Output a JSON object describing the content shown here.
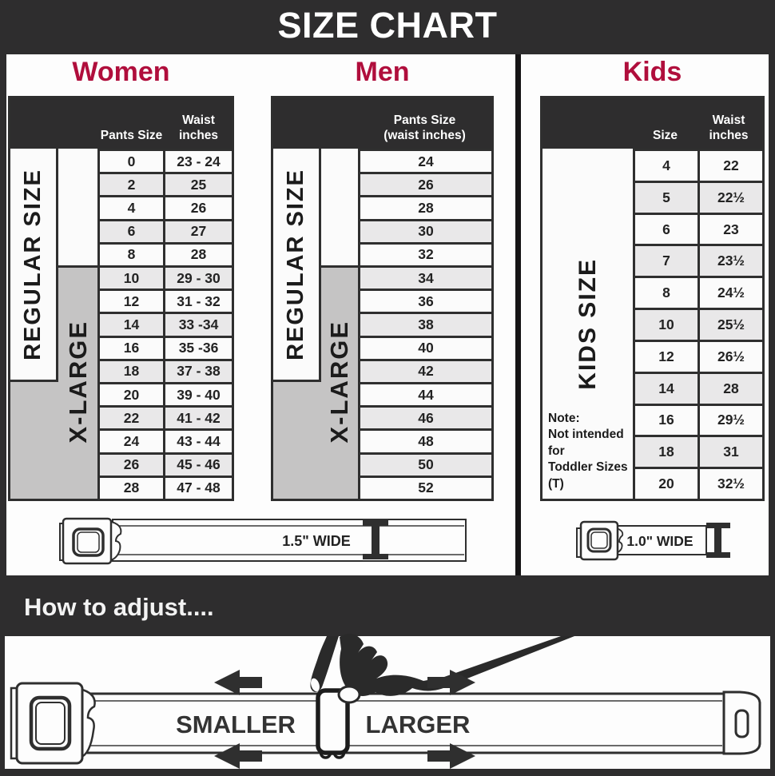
{
  "page": {
    "title": "SIZE CHART",
    "adjust_heading": "How to adjust...."
  },
  "colors": {
    "accent": "#b00e3c",
    "dark": "#2e2d2e",
    "gray": "#c5c4c4"
  },
  "women": {
    "title": "Women",
    "header": {
      "pants": "Pants Size",
      "waist": "Waist\ninches"
    },
    "regular_label": "REGULAR SIZE",
    "xlarge_label": "X-LARGE",
    "rows": [
      [
        "0",
        "23 - 24"
      ],
      [
        "2",
        "25"
      ],
      [
        "4",
        "26"
      ],
      [
        "6",
        "27"
      ],
      [
        "8",
        "28"
      ],
      [
        "10",
        "29 - 30"
      ],
      [
        "12",
        "31 - 32"
      ],
      [
        "14",
        "33 -34"
      ],
      [
        "16",
        "35 -36"
      ],
      [
        "18",
        "37 - 38"
      ],
      [
        "20",
        "39 - 40"
      ],
      [
        "22",
        "41 - 42"
      ],
      [
        "24",
        "43 - 44"
      ],
      [
        "26",
        "45 - 46"
      ],
      [
        "28",
        "47 - 48"
      ]
    ]
  },
  "men": {
    "title": "Men",
    "header": "Pants Size\n(waist inches)",
    "regular_label": "REGULAR SIZE",
    "xlarge_label": "X-LARGE",
    "rows": [
      "24",
      "26",
      "28",
      "30",
      "32",
      "34",
      "36",
      "38",
      "40",
      "42",
      "44",
      "46",
      "48",
      "50",
      "52"
    ]
  },
  "kids": {
    "title": "Kids",
    "header": {
      "size": "Size",
      "waist": "Waist\ninches"
    },
    "side_label": "KIDS SIZE",
    "note": "Note:\nNot intended for\nToddler Sizes (T)",
    "rows": [
      [
        "4",
        "22"
      ],
      [
        "5",
        "22½"
      ],
      [
        "6",
        "23"
      ],
      [
        "7",
        "23½"
      ],
      [
        "8",
        "24½"
      ],
      [
        "10",
        "25½"
      ],
      [
        "12",
        "26½"
      ],
      [
        "14",
        "28"
      ],
      [
        "16",
        "29½"
      ],
      [
        "18",
        "31"
      ],
      [
        "20",
        "32½"
      ]
    ]
  },
  "belts": {
    "adult_width_label": "1.5\" WIDE",
    "kids_width_label": "1.0\" WIDE"
  },
  "adjust": {
    "smaller": "SMALLER",
    "larger": "LARGER"
  }
}
